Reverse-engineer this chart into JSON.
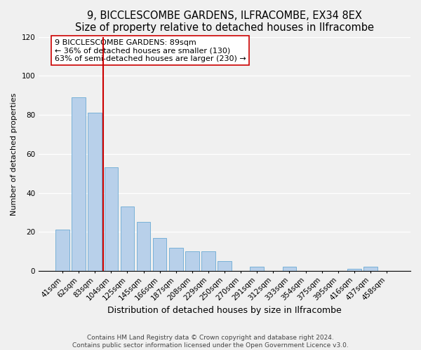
{
  "title": "9, BICCLESCOMBE GARDENS, ILFRACOMBE, EX34 8EX",
  "subtitle": "Size of property relative to detached houses in Ilfracombe",
  "xlabel": "Distribution of detached houses by size in Ilfracombe",
  "ylabel": "Number of detached properties",
  "footer_line1": "Contains HM Land Registry data © Crown copyright and database right 2024.",
  "footer_line2": "Contains public sector information licensed under the Open Government Licence v3.0.",
  "bar_labels": [
    "41sqm",
    "62sqm",
    "83sqm",
    "104sqm",
    "125sqm",
    "145sqm",
    "166sqm",
    "187sqm",
    "208sqm",
    "229sqm",
    "250sqm",
    "270sqm",
    "291sqm",
    "312sqm",
    "333sqm",
    "354sqm",
    "375sqm",
    "395sqm",
    "416sqm",
    "437sqm",
    "458sqm"
  ],
  "bar_values": [
    21,
    89,
    81,
    53,
    33,
    25,
    17,
    12,
    10,
    10,
    5,
    0,
    2,
    0,
    2,
    0,
    0,
    0,
    1,
    2,
    0
  ],
  "bar_color": "#b8d0ea",
  "bar_edge_color": "#6aaad4",
  "vline_color": "#cc0000",
  "annotation_text": "9 BICCLESCOMBE GARDENS: 89sqm\n← 36% of detached houses are smaller (130)\n63% of semi-detached houses are larger (230) →",
  "annotation_box_color": "white",
  "annotation_box_edge_color": "#cc0000",
  "ylim": [
    0,
    120
  ],
  "yticks": [
    0,
    20,
    40,
    60,
    80,
    100,
    120
  ],
  "title_fontsize": 10.5,
  "xlabel_fontsize": 9,
  "ylabel_fontsize": 8,
  "tick_fontsize": 7.5,
  "annotation_fontsize": 8,
  "footer_fontsize": 6.5,
  "background_color": "#f0f0f0"
}
